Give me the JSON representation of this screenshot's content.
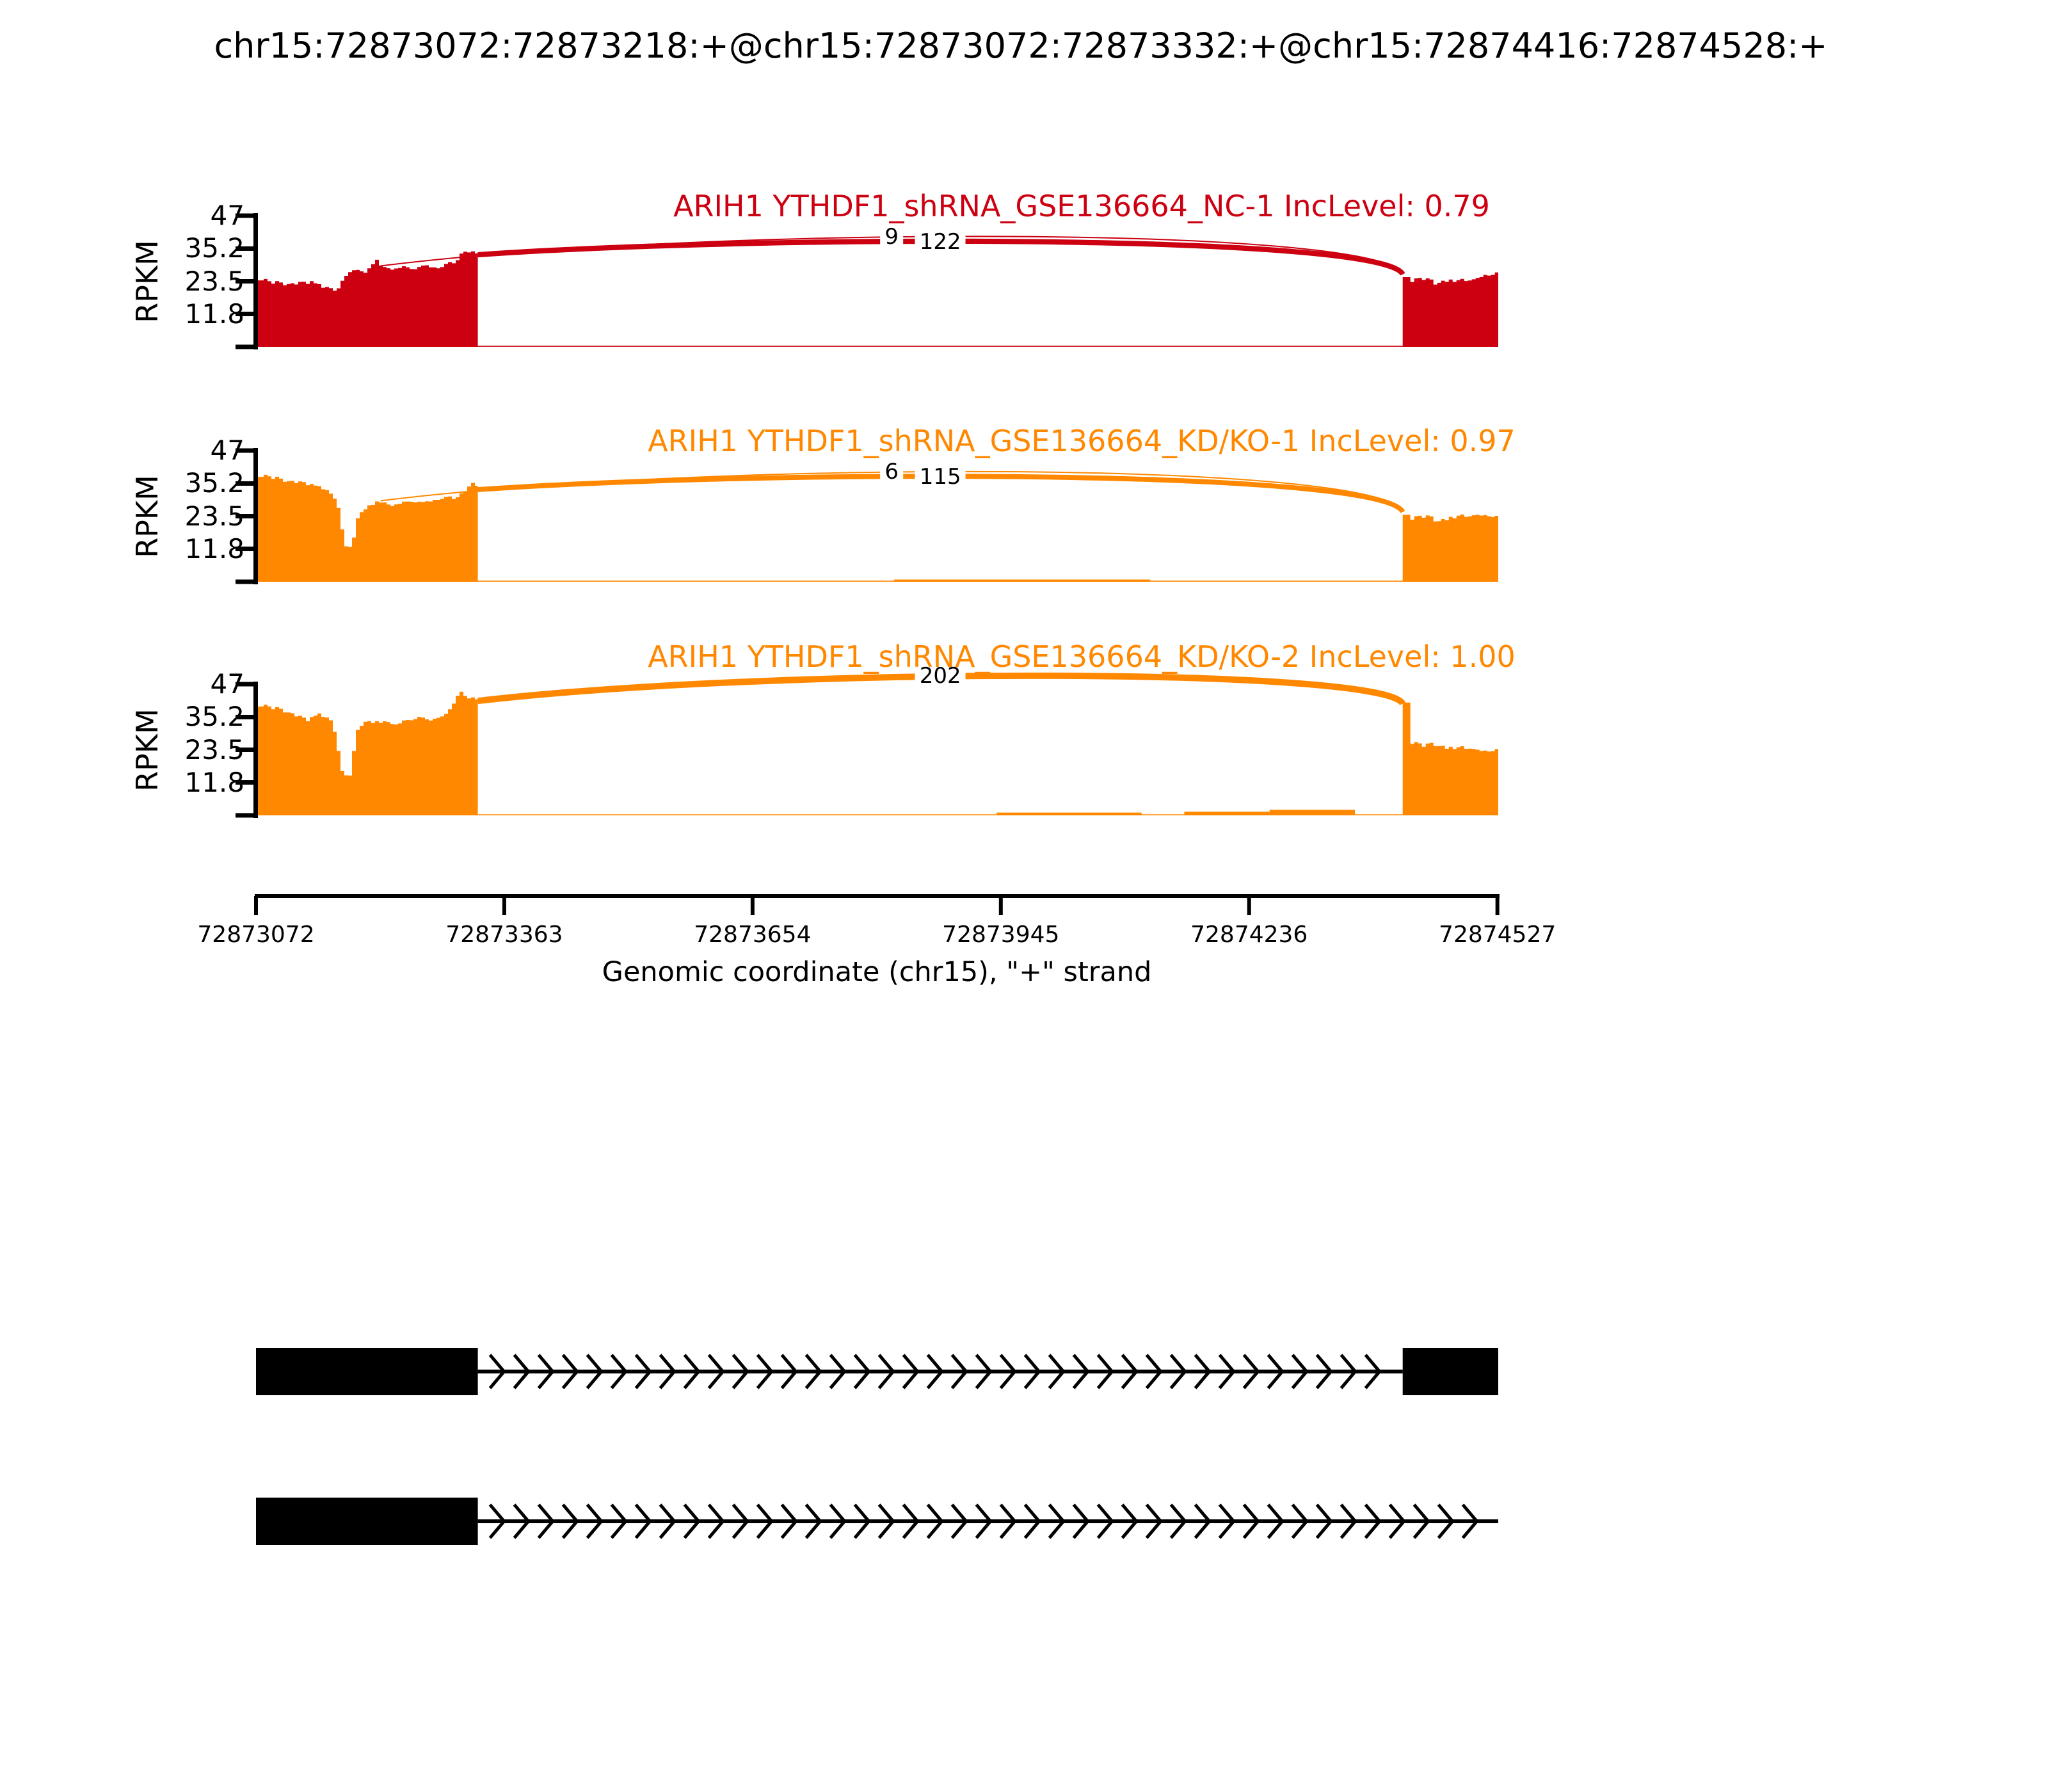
{
  "title": "chr15:72873072:72873218:+@chr15:72873072:72873332:+@chr15:72874416:72874528:+",
  "y_axis": {
    "label": "RPKM",
    "ticks": [
      "47",
      "35.2",
      "23.5",
      "11.8"
    ],
    "tick_values": [
      47,
      35.2,
      23.5,
      11.8
    ],
    "max": 47
  },
  "x_axis": {
    "label": "Genomic coordinate (chr15), \"+\" strand",
    "ticks": [
      "72873072",
      "72873363",
      "72873654",
      "72873945",
      "72874236",
      "72874527"
    ],
    "tick_values": [
      72873072,
      72873363,
      72873654,
      72873945,
      72874236,
      72874527
    ]
  },
  "colors": {
    "group1": "#CC0011",
    "group2": "#FF8800",
    "ink": "#000000"
  },
  "chart_data": {
    "type": "area",
    "description": "Sashimi plot (rMATS style): RNA-seq coverage in RPKM with splice junction arcs for an A5SS event in ARIH1",
    "x_range_bp": [
      72873072,
      72874528
    ],
    "ylim": [
      0,
      47
    ],
    "exon_regions_bp": [
      [
        72873072,
        72873332
      ],
      [
        72874416,
        72874528
      ]
    ],
    "tracks": [
      {
        "label_text": "ARIH1 YTHDF1_shRNA_GSE136664_NC-1 IncLevel: 0.79",
        "sample": "ARIH1 YTHDF1_shRNA_GSE136664_NC-1",
        "inc_level": "0.79",
        "color": "#CC0011",
        "junctions": [
          {
            "count": "9",
            "from_bp": 72873218,
            "to_bp": 72874416
          },
          {
            "count": "122",
            "from_bp": 72873332,
            "to_bp": 72874416
          }
        ],
        "coverage_left": [
          [
            72873072,
            25
          ],
          [
            72873085,
            23.5
          ],
          [
            72873110,
            22.5
          ],
          [
            72873135,
            23
          ],
          [
            72873150,
            21
          ],
          [
            72873165,
            20
          ],
          [
            72873172,
            25
          ],
          [
            72873185,
            27.5
          ],
          [
            72873200,
            27
          ],
          [
            72873210,
            31
          ],
          [
            72873218,
            29
          ],
          [
            72873230,
            28
          ],
          [
            72873245,
            28.5
          ],
          [
            72873258,
            28
          ],
          [
            72873270,
            29
          ],
          [
            72873285,
            28.5
          ],
          [
            72873295,
            29.5
          ],
          [
            72873305,
            31
          ],
          [
            72873315,
            34.5
          ],
          [
            72873325,
            33.5
          ],
          [
            72873332,
            33
          ]
        ],
        "coverage_right": [
          [
            72874416,
            26
          ],
          [
            72874424,
            23.5
          ],
          [
            72874438,
            24.5
          ],
          [
            72874452,
            23
          ],
          [
            72874466,
            24
          ],
          [
            72874480,
            23.5
          ],
          [
            72874495,
            24.5
          ],
          [
            72874510,
            26
          ],
          [
            72874528,
            26
          ]
        ],
        "intron_coverage": []
      },
      {
        "label_text": "ARIH1 YTHDF1_shRNA_GSE136664_KD/KO-1 IncLevel: 0.97",
        "sample": "ARIH1 YTHDF1_shRNA_GSE136664_KD/KO-1",
        "inc_level": "0.97",
        "color": "#FF8800",
        "junctions": [
          {
            "count": "6",
            "from_bp": 72873218,
            "to_bp": 72874416
          },
          {
            "count": "115",
            "from_bp": 72873332,
            "to_bp": 72874416
          }
        ],
        "coverage_left": [
          [
            72873072,
            38.5
          ],
          [
            72873090,
            37.5
          ],
          [
            72873110,
            36
          ],
          [
            72873130,
            35
          ],
          [
            72873150,
            33
          ],
          [
            72873165,
            29
          ],
          [
            72873175,
            13
          ],
          [
            72873182,
            12
          ],
          [
            72873190,
            24
          ],
          [
            72873200,
            27
          ],
          [
            72873210,
            28
          ],
          [
            72873218,
            29
          ],
          [
            72873228,
            27.5
          ],
          [
            72873240,
            28
          ],
          [
            72873252,
            29
          ],
          [
            72873265,
            28
          ],
          [
            72873278,
            29.5
          ],
          [
            72873290,
            30
          ],
          [
            72873300,
            30
          ],
          [
            72873310,
            31
          ],
          [
            72873320,
            34.5
          ],
          [
            72873326,
            35
          ],
          [
            72873332,
            33
          ]
        ],
        "coverage_right": [
          [
            72874416,
            25
          ],
          [
            72874424,
            22.5
          ],
          [
            72874440,
            23.5
          ],
          [
            72874455,
            22
          ],
          [
            72874470,
            23
          ],
          [
            72874485,
            23.5
          ],
          [
            72874500,
            24.5
          ],
          [
            72874514,
            24
          ],
          [
            72874528,
            22.5
          ]
        ],
        "intron_coverage": [
          [
            72873820,
            72874120,
            0.8
          ]
        ]
      },
      {
        "label_text": "ARIH1 YTHDF1_shRNA_GSE136664_KD/KO-2 IncLevel: 1.00",
        "sample": "ARIH1 YTHDF1_shRNA_GSE136664_KD/KO-2",
        "inc_level": "1.00",
        "color": "#FF8800",
        "junctions": [
          {
            "count": "202",
            "from_bp": 72873332,
            "to_bp": 72874416
          }
        ],
        "coverage_left": [
          [
            72873072,
            40
          ],
          [
            72873085,
            39
          ],
          [
            72873100,
            38
          ],
          [
            72873115,
            36
          ],
          [
            72873130,
            34
          ],
          [
            72873145,
            36
          ],
          [
            72873160,
            33
          ],
          [
            72873172,
            15
          ],
          [
            72873180,
            14
          ],
          [
            72873188,
            30
          ],
          [
            72873198,
            34
          ],
          [
            72873210,
            33
          ],
          [
            72873222,
            34
          ],
          [
            72873235,
            32.5
          ],
          [
            72873247,
            34
          ],
          [
            72873260,
            35
          ],
          [
            72873272,
            34
          ],
          [
            72873285,
            35.5
          ],
          [
            72873295,
            36
          ],
          [
            72873305,
            43
          ],
          [
            72873312,
            44
          ],
          [
            72873320,
            42
          ],
          [
            72873332,
            41
          ]
        ],
        "coverage_right": [
          [
            72874416,
            40
          ],
          [
            72874421,
            40
          ],
          [
            72874424,
            26
          ],
          [
            72874438,
            25
          ],
          [
            72874452,
            25.5
          ],
          [
            72874466,
            24.5
          ],
          [
            72874480,
            24
          ],
          [
            72874494,
            24.5
          ],
          [
            72874508,
            23.5
          ],
          [
            72874528,
            23
          ]
        ],
        "intron_coverage": [
          [
            72873940,
            72874110,
            1.0
          ],
          [
            72874160,
            72874260,
            1.3
          ],
          [
            72874260,
            72874360,
            2.0
          ]
        ]
      }
    ],
    "transcripts": [
      {
        "exons_bp": [
          [
            72873072,
            72873332
          ],
          [
            72874416,
            72874528
          ]
        ],
        "intron_bp": [
          72873332,
          72874416
        ]
      },
      {
        "exons_bp": [
          [
            72873072,
            72873332
          ]
        ],
        "intron_bp": [
          72873332,
          72874528
        ]
      }
    ]
  }
}
